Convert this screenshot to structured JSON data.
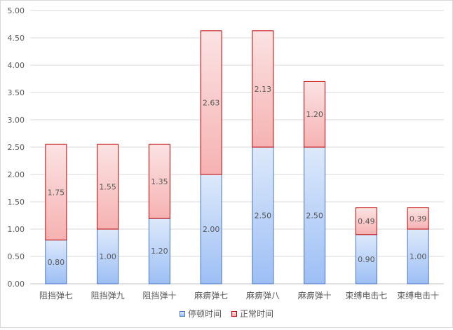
{
  "chart_data": {
    "type": "bar",
    "stacked": true,
    "categories": [
      "阻挡弹七",
      "阻挡弹九",
      "阻挡弹十",
      "麻痹弹七",
      "麻痹弹八",
      "麻痹弹十",
      "束缚电击七",
      "束缚电击十"
    ],
    "series": [
      {
        "name": "停顿时间",
        "values": [
          0.8,
          1.0,
          1.2,
          2.0,
          2.5,
          2.5,
          0.9,
          1.0
        ],
        "labels": [
          "0.80",
          "1.00",
          "1.20",
          "2.00",
          "2.50",
          "2.50",
          "0.90",
          "1.00"
        ],
        "color_top": "#dde9fb",
        "color_bottom": "#9dbff5",
        "border": "#4472c4"
      },
      {
        "name": "正常时间",
        "values": [
          1.75,
          1.55,
          1.35,
          2.63,
          2.13,
          1.2,
          0.49,
          0.39
        ],
        "labels": [
          "1.75",
          "1.55",
          "1.35",
          "2.63",
          "2.13",
          "1.20",
          "0.49",
          "0.39"
        ],
        "color_top": "#fbe3e3",
        "color_bottom": "#f6b2b2",
        "border": "#c00000"
      }
    ],
    "ylim": [
      0,
      5
    ],
    "yticks": [
      "0.00",
      "0.50",
      "1.00",
      "1.50",
      "2.00",
      "2.50",
      "3.00",
      "3.50",
      "4.00",
      "4.50",
      "5.00"
    ],
    "ytick_values": [
      0,
      0.5,
      1,
      1.5,
      2,
      2.5,
      3,
      3.5,
      4,
      4.5,
      5
    ],
    "grid": true,
    "legend_position": "bottom",
    "title": "",
    "xlabel": "",
    "ylabel": ""
  }
}
